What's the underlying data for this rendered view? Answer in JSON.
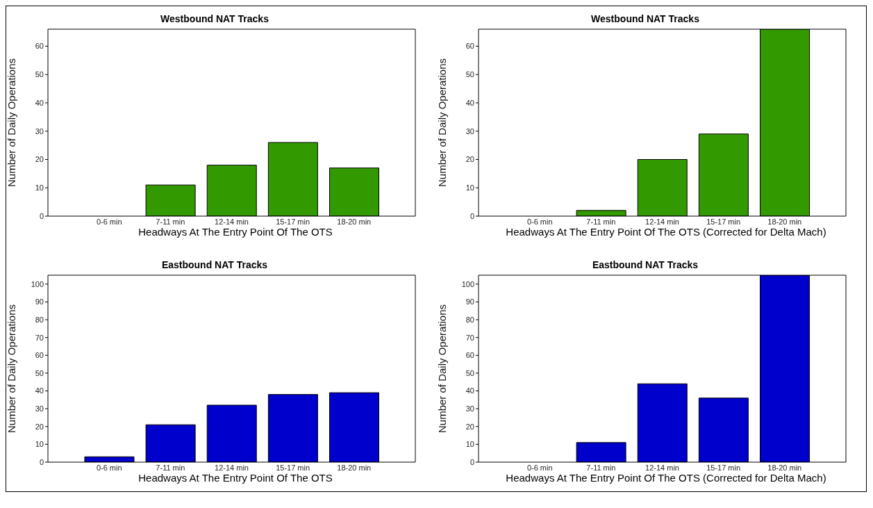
{
  "chart_data": [
    {
      "type": "bar",
      "title": "Westbound NAT Tracks",
      "xlabel": "Headways At The Entry Point Of The OTS",
      "ylabel": "Number of Daily Operations",
      "categories": [
        "0-6 min",
        "7-11 min",
        "12-14 min",
        "15-17 min",
        "18-20 min"
      ],
      "values": [
        0,
        11,
        18,
        26,
        17
      ],
      "color": "#339900",
      "ylim": [
        0,
        66
      ],
      "yticks": [
        0,
        10,
        20,
        30,
        40,
        50,
        60
      ],
      "grid": false,
      "legend": false
    },
    {
      "type": "bar",
      "title": "Westbound NAT Tracks",
      "xlabel": "Headways At The Entry Point Of The OTS (Corrected for Delta Mach)",
      "ylabel": "Number of Daily Operations",
      "categories": [
        "0-6 min",
        "7-11 min",
        "12-14 min",
        "15-17 min",
        "18-20 min"
      ],
      "values": [
        0,
        2,
        20,
        29,
        66
      ],
      "color": "#339900",
      "ylim": [
        0,
        66
      ],
      "yticks": [
        0,
        10,
        20,
        30,
        40,
        50,
        60
      ],
      "grid": false,
      "legend": false
    },
    {
      "type": "bar",
      "title": "Eastbound NAT Tracks",
      "xlabel": "Headways At The Entry Point Of The OTS",
      "ylabel": "Number of Daily Operations",
      "categories": [
        "0-6 min",
        "7-11 min",
        "12-14 min",
        "15-17 min",
        "18-20 min"
      ],
      "values": [
        3,
        21,
        32,
        38,
        39
      ],
      "color": "#0000cc",
      "ylim": [
        0,
        105
      ],
      "yticks": [
        0,
        10,
        20,
        30,
        40,
        50,
        60,
        70,
        80,
        90,
        100
      ],
      "grid": false,
      "legend": false
    },
    {
      "type": "bar",
      "title": "Eastbound NAT Tracks",
      "xlabel": "Headways At The Entry Point Of The OTS (Corrected for Delta Mach)",
      "ylabel": "Number of Daily Operations",
      "categories": [
        "0-6 min",
        "7-11 min",
        "12-14 min",
        "15-17 min",
        "18-20 min"
      ],
      "values": [
        0,
        11,
        44,
        36,
        105
      ],
      "color": "#0000cc",
      "ylim": [
        0,
        105
      ],
      "yticks": [
        0,
        10,
        20,
        30,
        40,
        50,
        60,
        70,
        80,
        90,
        100
      ],
      "grid": false,
      "legend": false
    }
  ]
}
